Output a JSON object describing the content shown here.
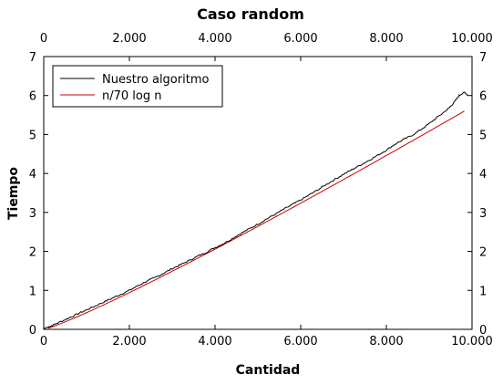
{
  "chart_data": {
    "type": "line",
    "title": "Caso random",
    "xlabel": "Cantidad",
    "ylabel": "Tiempo",
    "xlim": [
      0,
      10000
    ],
    "ylim": [
      0,
      7
    ],
    "x_ticks": [
      0,
      2000,
      4000,
      6000,
      8000,
      10000
    ],
    "x_tick_labels": [
      "0",
      "2.000",
      "4.000",
      "6.000",
      "8.000",
      "10.000"
    ],
    "y_ticks": [
      0,
      1,
      2,
      3,
      4,
      5,
      6,
      7
    ],
    "y_tick_labels": [
      "0",
      "1",
      "2",
      "3",
      "4",
      "5",
      "6",
      "7"
    ],
    "mirrored_axes": true,
    "grid": false,
    "legend_position": "top-left",
    "series": [
      {
        "name": "Nuestro algoritmo",
        "color": "#000000",
        "x": [
          0,
          100,
          200,
          400,
          600,
          800,
          1000,
          1200,
          1400,
          1600,
          1800,
          2000,
          2200,
          2400,
          2600,
          2800,
          3000,
          3200,
          3400,
          3600,
          3800,
          4000,
          4200,
          4400,
          4600,
          4800,
          5000,
          5200,
          5400,
          5600,
          5800,
          6000,
          6200,
          6400,
          6600,
          6800,
          7000,
          7200,
          7400,
          7600,
          7800,
          8000,
          8200,
          8400,
          8600,
          8800,
          9000,
          9200,
          9400,
          9500,
          9600,
          9700,
          9800,
          9900
        ],
        "y": [
          0.02,
          0.06,
          0.1,
          0.2,
          0.3,
          0.4,
          0.5,
          0.6,
          0.7,
          0.8,
          0.9,
          1.0,
          1.12,
          1.23,
          1.33,
          1.44,
          1.56,
          1.66,
          1.77,
          1.88,
          1.98,
          2.1,
          2.2,
          2.33,
          2.46,
          2.58,
          2.7,
          2.83,
          2.95,
          3.08,
          3.2,
          3.32,
          3.45,
          3.58,
          3.72,
          3.85,
          3.98,
          4.1,
          4.22,
          4.34,
          4.47,
          4.6,
          4.75,
          4.87,
          4.98,
          5.12,
          5.28,
          5.45,
          5.62,
          5.72,
          5.85,
          6.0,
          6.08,
          6.02
        ]
      },
      {
        "name": "n/70 log n",
        "color": "#cc0000",
        "function": "n/70*log10(n)",
        "x_range": [
          100,
          9820
        ]
      }
    ]
  }
}
